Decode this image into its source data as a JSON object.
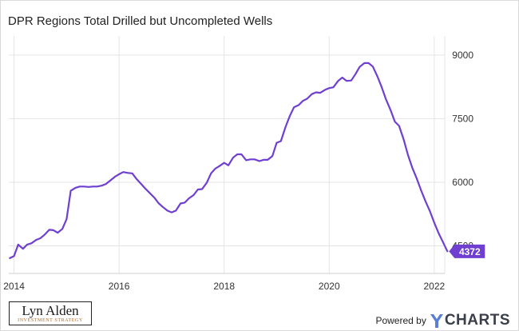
{
  "brand": {
    "logo_name": "Lyn Alden",
    "logo_tagline": "INVESTMENT STRATEGY",
    "powered_by": "Powered by",
    "provider": "CHARTS",
    "provider_mark_icon": "ycharts-y-icon"
  },
  "chart_data": {
    "type": "line",
    "title": "DPR Regions Total Drilled but Uncompleted Wells",
    "xlabel": "",
    "ylabel": "",
    "x_ticks": [
      2014,
      2016,
      2018,
      2020,
      2022
    ],
    "y_ticks": [
      4500,
      6000,
      7500,
      9000
    ],
    "y_axis_side": "right",
    "xlim": [
      2013.9,
      2022.2
    ],
    "ylim": [
      3850,
      9450
    ],
    "grid": true,
    "legend": "none",
    "line_color": "#6f3fd1",
    "last_value_label": "4372",
    "series": [
      {
        "values": [
          [
            2013.92,
            4210
          ],
          [
            2014.0,
            4260
          ],
          [
            2014.08,
            4530
          ],
          [
            2014.17,
            4430
          ],
          [
            2014.25,
            4530
          ],
          [
            2014.33,
            4560
          ],
          [
            2014.42,
            4640
          ],
          [
            2014.5,
            4680
          ],
          [
            2014.58,
            4760
          ],
          [
            2014.67,
            4880
          ],
          [
            2014.75,
            4870
          ],
          [
            2014.83,
            4810
          ],
          [
            2014.92,
            4900
          ],
          [
            2015.0,
            5130
          ],
          [
            2015.08,
            5800
          ],
          [
            2015.17,
            5870
          ],
          [
            2015.25,
            5900
          ],
          [
            2015.33,
            5900
          ],
          [
            2015.42,
            5890
          ],
          [
            2015.5,
            5900
          ],
          [
            2015.58,
            5900
          ],
          [
            2015.67,
            5920
          ],
          [
            2015.75,
            5960
          ],
          [
            2015.83,
            6040
          ],
          [
            2015.92,
            6130
          ],
          [
            2016.0,
            6190
          ],
          [
            2016.08,
            6240
          ],
          [
            2016.17,
            6220
          ],
          [
            2016.25,
            6210
          ],
          [
            2016.33,
            6080
          ],
          [
            2016.42,
            5960
          ],
          [
            2016.5,
            5850
          ],
          [
            2016.58,
            5750
          ],
          [
            2016.67,
            5640
          ],
          [
            2016.75,
            5510
          ],
          [
            2016.83,
            5420
          ],
          [
            2016.92,
            5330
          ],
          [
            2017.0,
            5290
          ],
          [
            2017.08,
            5330
          ],
          [
            2017.17,
            5500
          ],
          [
            2017.25,
            5520
          ],
          [
            2017.33,
            5620
          ],
          [
            2017.42,
            5700
          ],
          [
            2017.5,
            5830
          ],
          [
            2017.58,
            5840
          ],
          [
            2017.67,
            5990
          ],
          [
            2017.75,
            6210
          ],
          [
            2017.83,
            6320
          ],
          [
            2017.92,
            6390
          ],
          [
            2018.0,
            6460
          ],
          [
            2018.08,
            6400
          ],
          [
            2018.17,
            6580
          ],
          [
            2018.25,
            6660
          ],
          [
            2018.33,
            6660
          ],
          [
            2018.42,
            6520
          ],
          [
            2018.5,
            6540
          ],
          [
            2018.58,
            6540
          ],
          [
            2018.67,
            6500
          ],
          [
            2018.75,
            6530
          ],
          [
            2018.83,
            6530
          ],
          [
            2018.92,
            6620
          ],
          [
            2019.0,
            6930
          ],
          [
            2019.08,
            6970
          ],
          [
            2019.17,
            7310
          ],
          [
            2019.25,
            7560
          ],
          [
            2019.33,
            7770
          ],
          [
            2019.42,
            7820
          ],
          [
            2019.5,
            7920
          ],
          [
            2019.58,
            7970
          ],
          [
            2019.67,
            8080
          ],
          [
            2019.75,
            8120
          ],
          [
            2019.83,
            8110
          ],
          [
            2019.92,
            8180
          ],
          [
            2020.0,
            8220
          ],
          [
            2020.08,
            8240
          ],
          [
            2020.17,
            8390
          ],
          [
            2020.25,
            8470
          ],
          [
            2020.33,
            8390
          ],
          [
            2020.42,
            8400
          ],
          [
            2020.5,
            8550
          ],
          [
            2020.58,
            8720
          ],
          [
            2020.67,
            8810
          ],
          [
            2020.75,
            8810
          ],
          [
            2020.83,
            8730
          ],
          [
            2020.92,
            8490
          ],
          [
            2021.0,
            8240
          ],
          [
            2021.08,
            7960
          ],
          [
            2021.17,
            7700
          ],
          [
            2021.25,
            7430
          ],
          [
            2021.33,
            7330
          ],
          [
            2021.42,
            7000
          ],
          [
            2021.5,
            6640
          ],
          [
            2021.58,
            6350
          ],
          [
            2021.67,
            6080
          ],
          [
            2021.75,
            5810
          ],
          [
            2021.83,
            5560
          ],
          [
            2021.92,
            5310
          ],
          [
            2022.0,
            5050
          ],
          [
            2022.08,
            4810
          ],
          [
            2022.17,
            4580
          ],
          [
            2022.25,
            4372
          ]
        ]
      }
    ]
  }
}
